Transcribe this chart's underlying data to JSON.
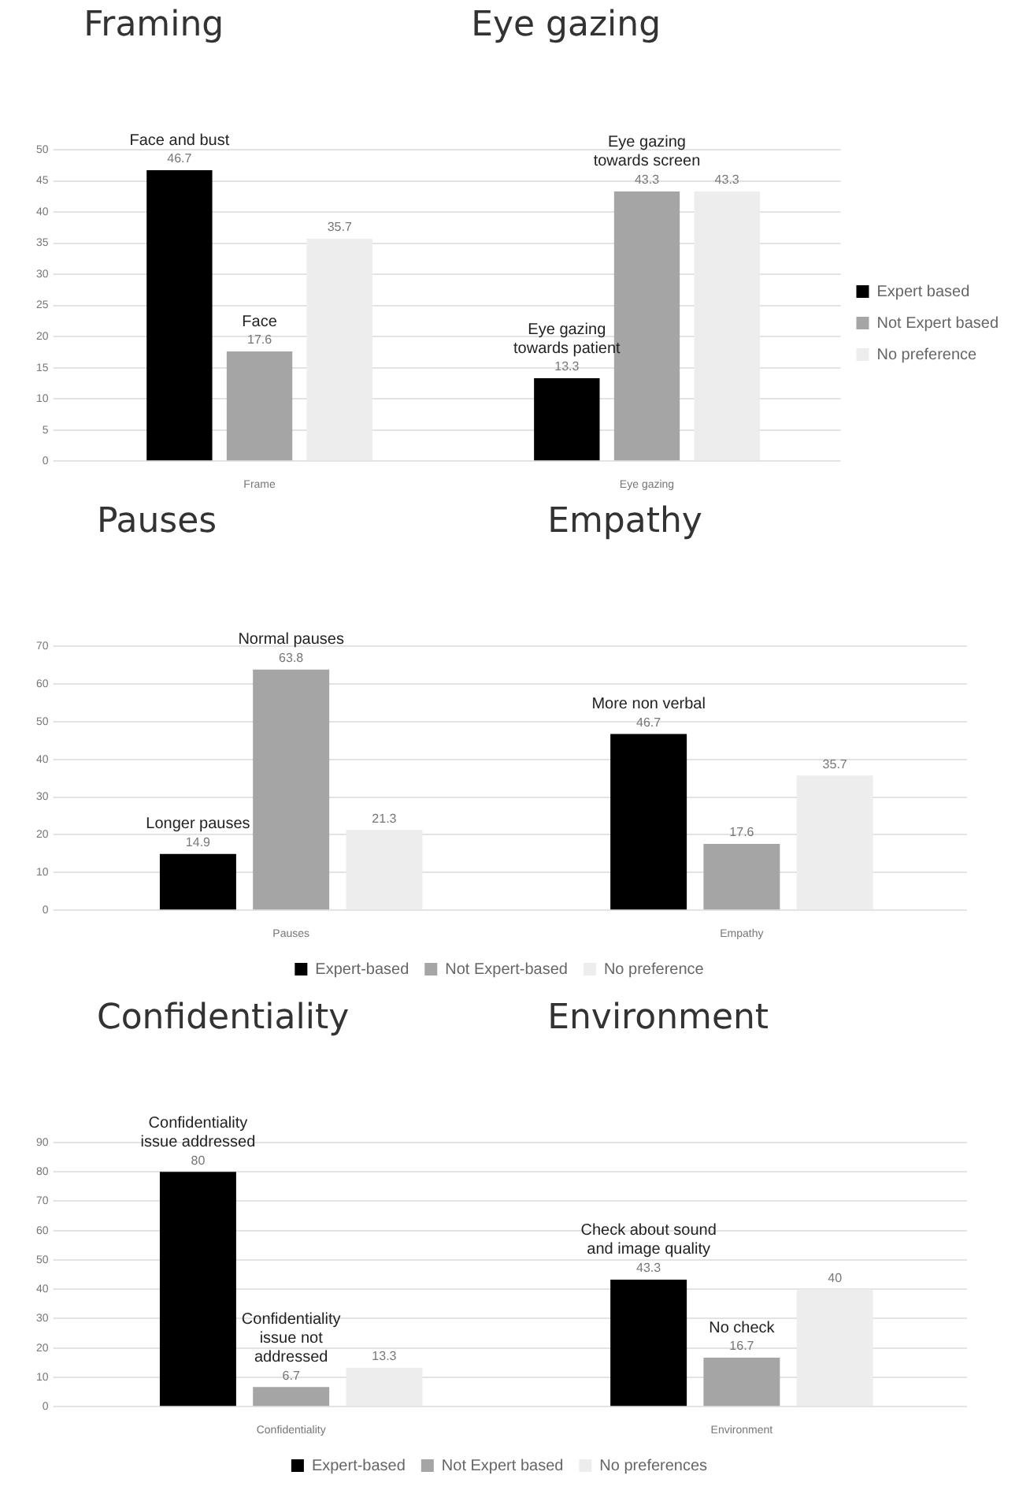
{
  "chart_data": [
    {
      "type": "bar",
      "categories": [
        "Frame",
        "Eye gazing"
      ],
      "series": [
        {
          "name": "Expert based",
          "color": "#000000",
          "values": [
            46.7,
            13.3
          ]
        },
        {
          "name": "Not Expert based",
          "color": "#a5a5a5",
          "values": [
            17.6,
            43.3
          ]
        },
        {
          "name": "No preference",
          "color": "#ededed",
          "values": [
            35.7,
            43.3
          ]
        }
      ],
      "ylim": [
        0,
        50
      ],
      "yticks": [
        0,
        5,
        10,
        15,
        20,
        25,
        30,
        35,
        40,
        45,
        50
      ],
      "grid": "y",
      "legend": "right",
      "data_labels": true,
      "annotations": [
        "Framing",
        "Eye gazing",
        "Face and bust",
        "Face",
        "Eye gazing towards patient",
        "Eye gazing towards screen"
      ]
    },
    {
      "type": "bar",
      "categories": [
        "Pauses",
        "Empathy"
      ],
      "series": [
        {
          "name": "Expert-based",
          "color": "#000000",
          "values": [
            14.9,
            46.7
          ]
        },
        {
          "name": "Not Expert-based",
          "color": "#a5a5a5",
          "values": [
            63.8,
            17.6
          ]
        },
        {
          "name": "No preference",
          "color": "#ededed",
          "values": [
            21.3,
            35.7
          ]
        }
      ],
      "ylim": [
        0,
        70
      ],
      "yticks": [
        0,
        10,
        20,
        30,
        40,
        50,
        60,
        70
      ],
      "grid": "y",
      "legend": "bottom",
      "data_labels": true,
      "annotations": [
        "Pauses",
        "Empathy",
        "Longer pauses",
        "Normal pauses",
        "More non verbal"
      ]
    },
    {
      "type": "bar",
      "categories": [
        "Confidentiality",
        "Environment"
      ],
      "series": [
        {
          "name": "Expert-based",
          "color": "#000000",
          "values": [
            80.0,
            43.3
          ]
        },
        {
          "name": "Not Expert based",
          "color": "#a5a5a5",
          "values": [
            6.7,
            16.7
          ]
        },
        {
          "name": "No preferences",
          "color": "#ededed",
          "values": [
            13.3,
            40.0
          ]
        }
      ],
      "ylim": [
        0,
        90
      ],
      "yticks": [
        0,
        10,
        20,
        30,
        40,
        50,
        60,
        70,
        80,
        90
      ],
      "grid": "y",
      "legend": "bottom",
      "data_labels": true,
      "annotations": [
        "Confidentiality",
        "Environment",
        "Confidentiality issue addressed",
        "Confidentiality issue not addressed",
        "Check about sound and image quality",
        "No check"
      ]
    }
  ]
}
